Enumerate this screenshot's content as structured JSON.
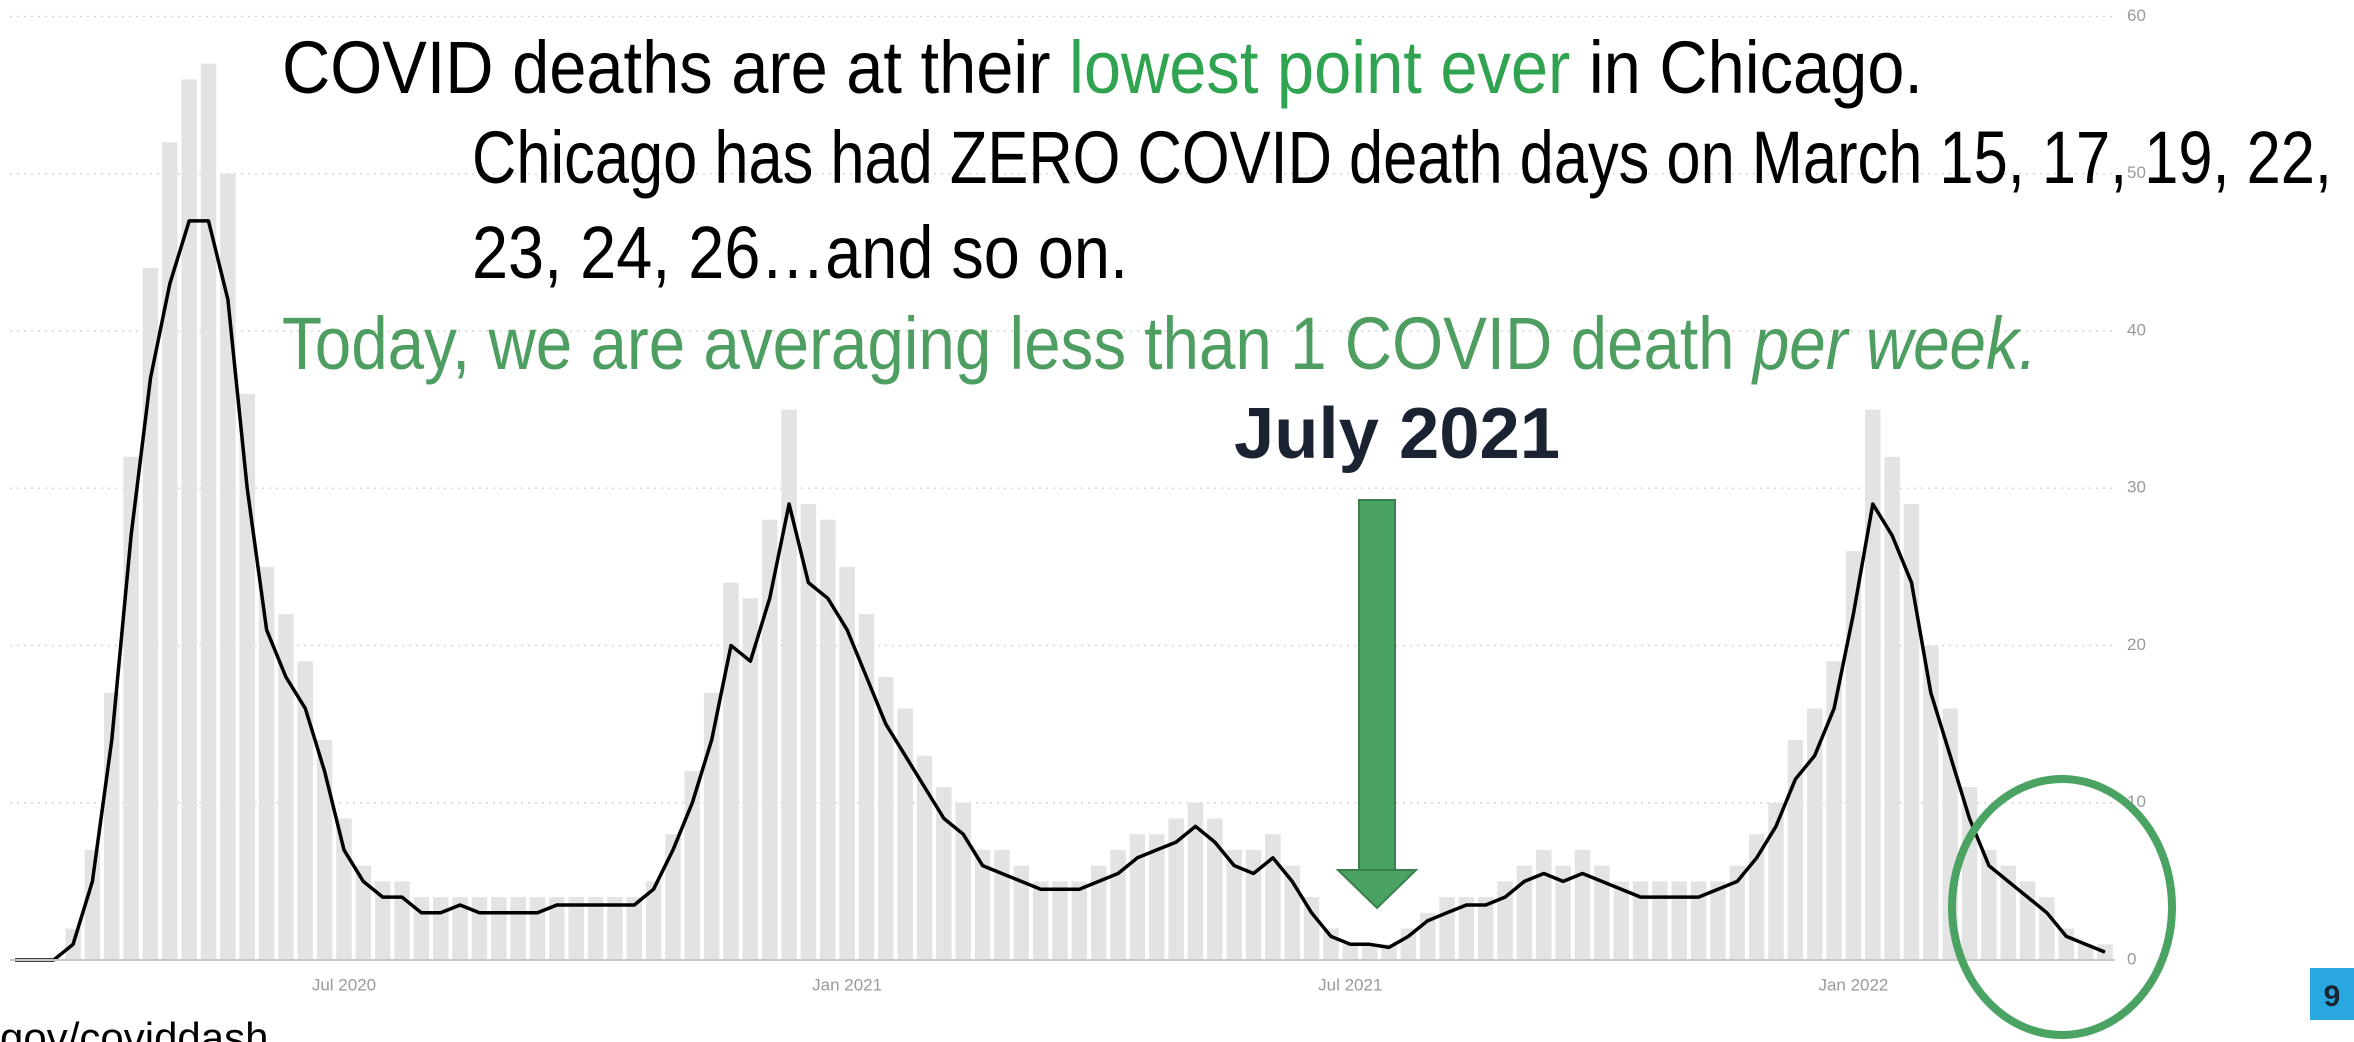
{
  "chart_data": {
    "type": "bar_line",
    "title": [
      "COVID deaths are at their ",
      "lowest point ever",
      " in Chicago."
    ],
    "subtitle": [
      "Chicago has had ZERO COVID death days on March 15, 17, 19, 22,",
      "23, 24, 26…and so on."
    ],
    "note": [
      "Today, we are averaging less than 1 COVID death ",
      "per week."
    ],
    "annotation": "July 2021",
    "source": "gov/coviddash",
    "page_number": "9",
    "categories": [
      null,
      null,
      null,
      null,
      null,
      null,
      null,
      null,
      null,
      null,
      null,
      null,
      null,
      null,
      null,
      null,
      null,
      "Jul 2020",
      null,
      null,
      null,
      null,
      null,
      null,
      null,
      null,
      null,
      null,
      null,
      null,
      null,
      null,
      null,
      null,
      null,
      null,
      null,
      null,
      null,
      null,
      null,
      null,
      null,
      "Jan 2021",
      null,
      null,
      null,
      null,
      null,
      null,
      null,
      null,
      null,
      null,
      null,
      null,
      null,
      null,
      null,
      null,
      null,
      null,
      null,
      null,
      null,
      null,
      null,
      null,
      null,
      "Jul 2021",
      null,
      null,
      null,
      null,
      null,
      null,
      null,
      null,
      null,
      null,
      null,
      null,
      null,
      null,
      null,
      null,
      null,
      null,
      null,
      null,
      null,
      null,
      null,
      null,
      null,
      "Jan 2022",
      null,
      null,
      null,
      null,
      null,
      null,
      null,
      null,
      null,
      null,
      null,
      null,
      null
    ],
    "series": [
      {
        "color": "#e3e3e3",
        "kind": "bar",
        "values": [
          0,
          0,
          0,
          2,
          7,
          17,
          32,
          44,
          52,
          56,
          57,
          50,
          36,
          25,
          22,
          19,
          14,
          9,
          6,
          5,
          5,
          4,
          4,
          4,
          4,
          4,
          4,
          4,
          4,
          4,
          4,
          4,
          4,
          5,
          8,
          12,
          17,
          24,
          23,
          28,
          35,
          29,
          28,
          25,
          22,
          18,
          16,
          13,
          11,
          10,
          7,
          7,
          6,
          5,
          5,
          5,
          6,
          7,
          8,
          8,
          9,
          10,
          9,
          7,
          7,
          8,
          6,
          4,
          2,
          1,
          1,
          1,
          2,
          3,
          4,
          4,
          4,
          5,
          6,
          7,
          6,
          7,
          6,
          5,
          5,
          5,
          5,
          5,
          5,
          6,
          8,
          10,
          14,
          16,
          19,
          26,
          35,
          32,
          29,
          20,
          16,
          11,
          7,
          6,
          5,
          4,
          2,
          1,
          1
        ]
      },
      {
        "color": "#000000",
        "kind": "line",
        "values": [
          0,
          0,
          0,
          1,
          5,
          14,
          27,
          37,
          43,
          47,
          47,
          42,
          30,
          21,
          18,
          16,
          12,
          7,
          5,
          4,
          4,
          3,
          3,
          3.5,
          3,
          3,
          3,
          3,
          3.5,
          3.5,
          3.5,
          3.5,
          3.5,
          4.5,
          7,
          10,
          14,
          20,
          19,
          23,
          29,
          24,
          23,
          21,
          18,
          15,
          13,
          11,
          9,
          8,
          6,
          5.5,
          5,
          4.5,
          4.5,
          4.5,
          5,
          5.5,
          6.5,
          7,
          7.5,
          8.5,
          7.5,
          6,
          5.5,
          6.5,
          5,
          3,
          1.5,
          1,
          1,
          0.8,
          1.5,
          2.5,
          3,
          3.5,
          3.5,
          4,
          5,
          5.5,
          5,
          5.5,
          5,
          4.5,
          4,
          4,
          4,
          4,
          4.5,
          5,
          6.5,
          8.5,
          11.5,
          13,
          16,
          22,
          29,
          27,
          24,
          17,
          13,
          9,
          6,
          5,
          4,
          3,
          1.5,
          1,
          0.5
        ]
      }
    ],
    "ylim": [
      0,
      60
    ],
    "yticks": [
      0,
      10,
      20,
      30,
      40,
      50,
      60
    ],
    "grid": true
  }
}
